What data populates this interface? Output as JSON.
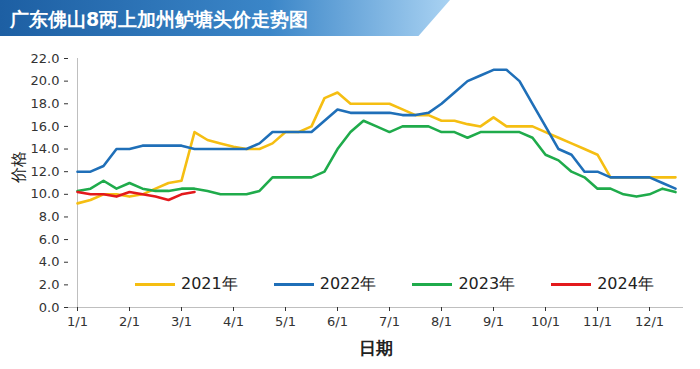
{
  "chart_data": {
    "type": "line",
    "title": "广东佛山8两上加州鲈塘头价走势图",
    "x_label": "日期",
    "y_label": "价格",
    "categories": [
      "1/1",
      null,
      null,
      null,
      "2/1",
      null,
      null,
      null,
      "3/1",
      null,
      null,
      null,
      "4/1",
      null,
      null,
      null,
      "5/1",
      null,
      null,
      null,
      "6/1",
      null,
      null,
      null,
      "7/1",
      null,
      null,
      null,
      "8/1",
      null,
      null,
      null,
      "9/1",
      null,
      null,
      null,
      "10/1",
      null,
      null,
      null,
      "11/1",
      null,
      null,
      null,
      "12/1",
      null,
      null
    ],
    "series": [
      {
        "name": "2021年",
        "color": "#f5be12",
        "values": [
          9.2,
          9.5,
          10,
          10,
          9.8,
          10,
          10.5,
          11,
          11.2,
          15.5,
          14.8,
          14.5,
          14.2,
          14,
          14,
          14.5,
          15.5,
          15.5,
          16,
          18.5,
          19,
          18,
          18,
          18,
          18,
          17.5,
          17,
          17,
          16.5,
          16.5,
          16.2,
          16,
          16.8,
          16,
          16,
          16,
          15.5,
          15,
          14.5,
          14,
          13.5,
          11.5,
          11.5,
          11.5,
          11.5,
          11.5,
          11.5
        ]
      },
      {
        "name": "2022年",
        "color": "#1f6fb8",
        "values": [
          12,
          12,
          12.5,
          14,
          14,
          14.3,
          14.3,
          14.3,
          14.3,
          14,
          14,
          14,
          14,
          14,
          14.5,
          15.5,
          15.5,
          15.5,
          15.5,
          16.5,
          17.5,
          17.2,
          17.2,
          17.2,
          17.2,
          17,
          17,
          17.2,
          18,
          19,
          20,
          20.5,
          21,
          21,
          20,
          18,
          16,
          14,
          13.5,
          12,
          12,
          11.5,
          11.5,
          11.5,
          11.5,
          11,
          10.5
        ]
      },
      {
        "name": "2023年",
        "color": "#1fab4b",
        "values": [
          10.3,
          10.5,
          11.2,
          10.5,
          11,
          10.5,
          10.3,
          10.3,
          10.5,
          10.5,
          10.3,
          10,
          10,
          10,
          10.3,
          11.5,
          11.5,
          11.5,
          11.5,
          12,
          14,
          15.5,
          16.5,
          16,
          15.5,
          16,
          16,
          16,
          15.5,
          15.5,
          15,
          15.5,
          15.5,
          15.5,
          15.5,
          15,
          13.5,
          13,
          12,
          11.5,
          10.5,
          10.5,
          10,
          9.8,
          10,
          10.5,
          10.2
        ]
      },
      {
        "name": "2024年",
        "color": "#e3191c",
        "values": [
          10.2,
          10,
          10,
          9.8,
          10.2,
          10,
          9.8,
          9.5,
          10,
          10.2,
          null,
          null,
          null,
          null,
          null,
          null,
          null,
          null,
          null,
          null,
          null,
          null,
          null,
          null,
          null,
          null,
          null,
          null,
          null,
          null,
          null,
          null,
          null,
          null,
          null,
          null,
          null,
          null,
          null,
          null,
          null,
          null,
          null,
          null,
          null,
          null,
          null
        ]
      }
    ],
    "ylim": [
      0,
      22
    ],
    "yticks": [
      {
        "value": 0,
        "label": "0.0"
      },
      {
        "value": 2,
        "label": "2.0"
      },
      {
        "value": 4,
        "label": "4.0"
      },
      {
        "value": 6,
        "label": "6.0"
      },
      {
        "value": 8,
        "label": "8.0"
      },
      {
        "value": 10,
        "label": "10.0"
      },
      {
        "value": 12,
        "label": "12.0"
      },
      {
        "value": 14,
        "label": "14.0"
      },
      {
        "value": 16,
        "label": "16.0"
      },
      {
        "value": 18,
        "label": "18.0"
      },
      {
        "value": 20,
        "label": "20.0"
      },
      {
        "value": 22,
        "label": "22.0"
      }
    ],
    "grid": false,
    "legend": "bottom"
  }
}
